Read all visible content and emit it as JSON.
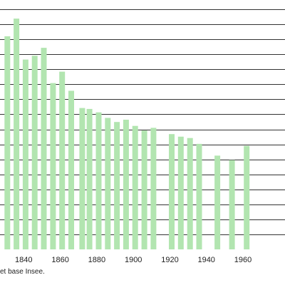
{
  "chart_data": {
    "type": "bar",
    "title": "",
    "xlabel": "",
    "ylabel": "",
    "x": [
      1831,
      1836,
      1841,
      1846,
      1851,
      1856,
      1861,
      1866,
      1872,
      1876,
      1881,
      1886,
      1891,
      1896,
      1901,
      1906,
      1911,
      1921,
      1926,
      1931,
      1936,
      1946,
      1954,
      1962
    ],
    "values": [
      1420,
      1538,
      1265,
      1290,
      1343,
      1108,
      1184,
      1057,
      942,
      936,
      913,
      876,
      849,
      864,
      823,
      792,
      810,
      768,
      751,
      742,
      703,
      625,
      595,
      690
    ],
    "xlim": [
      1827,
      1983
    ],
    "ylim": [
      0,
      1600
    ],
    "x_ticks": [
      1840,
      1860,
      1880,
      1900,
      1920,
      1940,
      1960
    ],
    "x_tick_labels": [
      "1840",
      "1860",
      "1880",
      "1900",
      "1920",
      "1940",
      "1960"
    ],
    "grid": true,
    "bar_color": "#b2e5b0",
    "grid_color": "#333333"
  },
  "source_note": "et base Insee."
}
